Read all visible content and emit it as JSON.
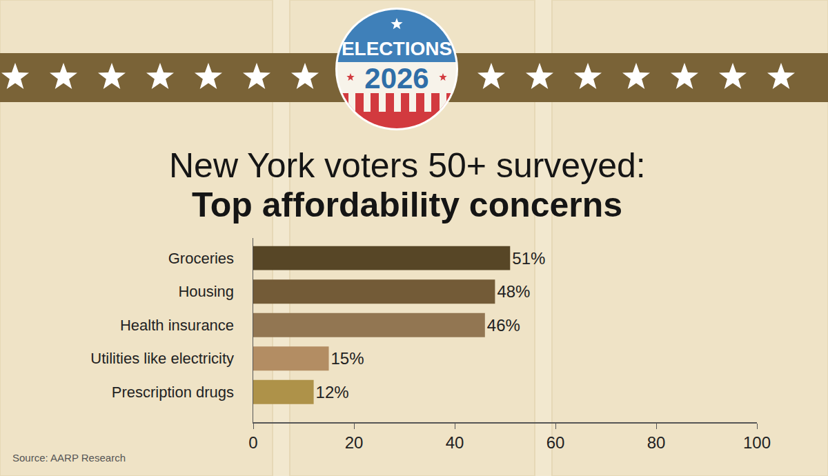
{
  "chart_data": {
    "type": "bar",
    "orientation": "horizontal",
    "title": "New York voters 50+ surveyed:",
    "subtitle": "Top affordability concerns",
    "annotations": [
      "ELECTIONS",
      "2026"
    ],
    "source": "Source: AARP Research",
    "categories": [
      "Groceries",
      "Housing",
      "Health insurance",
      "Utilities like electricity",
      "Prescription drugs"
    ],
    "values": [
      51,
      48,
      46,
      15,
      12
    ],
    "value_labels": [
      "51%",
      "48%",
      "46%",
      "15%",
      "12%"
    ],
    "colors": [
      "#574626",
      "#735b37",
      "#927652",
      "#b38d63",
      "#ae9249"
    ],
    "xlim": [
      0,
      100
    ],
    "xticks": [
      0,
      20,
      40,
      60,
      80,
      100
    ],
    "data_labels": true,
    "grid": false
  }
}
